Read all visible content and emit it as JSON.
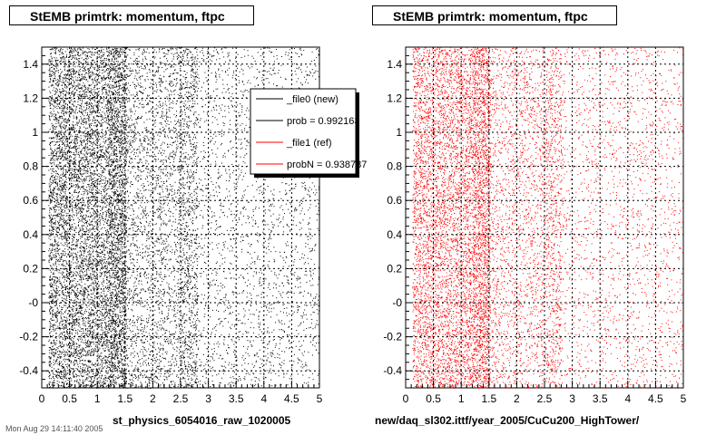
{
  "chart_data": [
    {
      "type": "scatter",
      "title": "StEMB primtrk: momentum, ftpc",
      "xlabel": "st_physics_6054016_raw_1020005",
      "ylabel": "",
      "xlim": [
        0,
        5
      ],
      "ylim": [
        -0.5,
        1.5
      ],
      "x_ticks": [
        "0",
        "0.5",
        "1",
        "1.5",
        "2",
        "2.5",
        "3",
        "3.5",
        "4",
        "4.5",
        "5"
      ],
      "y_ticks": [
        "-0.4",
        "-0.2",
        "-0",
        "0.2",
        "0.4",
        "0.6",
        "0.8",
        "1",
        "1.2",
        "1.4"
      ],
      "grid": true,
      "point_color": "#000000",
      "density": "high at x 0.1-1.5, decreasing toward x=5, uniform in y",
      "legend": {
        "placement": "top-right",
        "entries": [
          {
            "label": "_file0 (new)",
            "color": "#000000"
          },
          {
            "label": "prob = 0.992163",
            "color": "#000000"
          },
          {
            "label": "_file1 (ref)",
            "color": "#ff0000"
          },
          {
            "label": "probN = 0.938787",
            "color": "#ff0000"
          }
        ]
      }
    },
    {
      "type": "scatter",
      "title": "StEMB primtrk: momentum, ftpc",
      "xlabel": "new/daq_sl302.ittf/year_2005/CuCu200_HighTower/",
      "ylabel": "",
      "xlim": [
        0,
        5
      ],
      "ylim": [
        -0.5,
        1.5
      ],
      "x_ticks": [
        "0",
        "0.5",
        "1",
        "1.5",
        "2",
        "2.5",
        "3",
        "3.5",
        "4",
        "4.5",
        "5"
      ],
      "y_ticks": [
        "-0.4",
        "-0.2",
        "-0",
        "0.2",
        "0.4",
        "0.6",
        "0.8",
        "1",
        "1.2",
        "1.4"
      ],
      "grid": true,
      "point_color": "#ff0000",
      "density": "high at x 0.1-1.5, decreasing toward x=5, uniform in y"
    }
  ],
  "footer_stamp": "Mon Aug 29 14:11:40 2005"
}
